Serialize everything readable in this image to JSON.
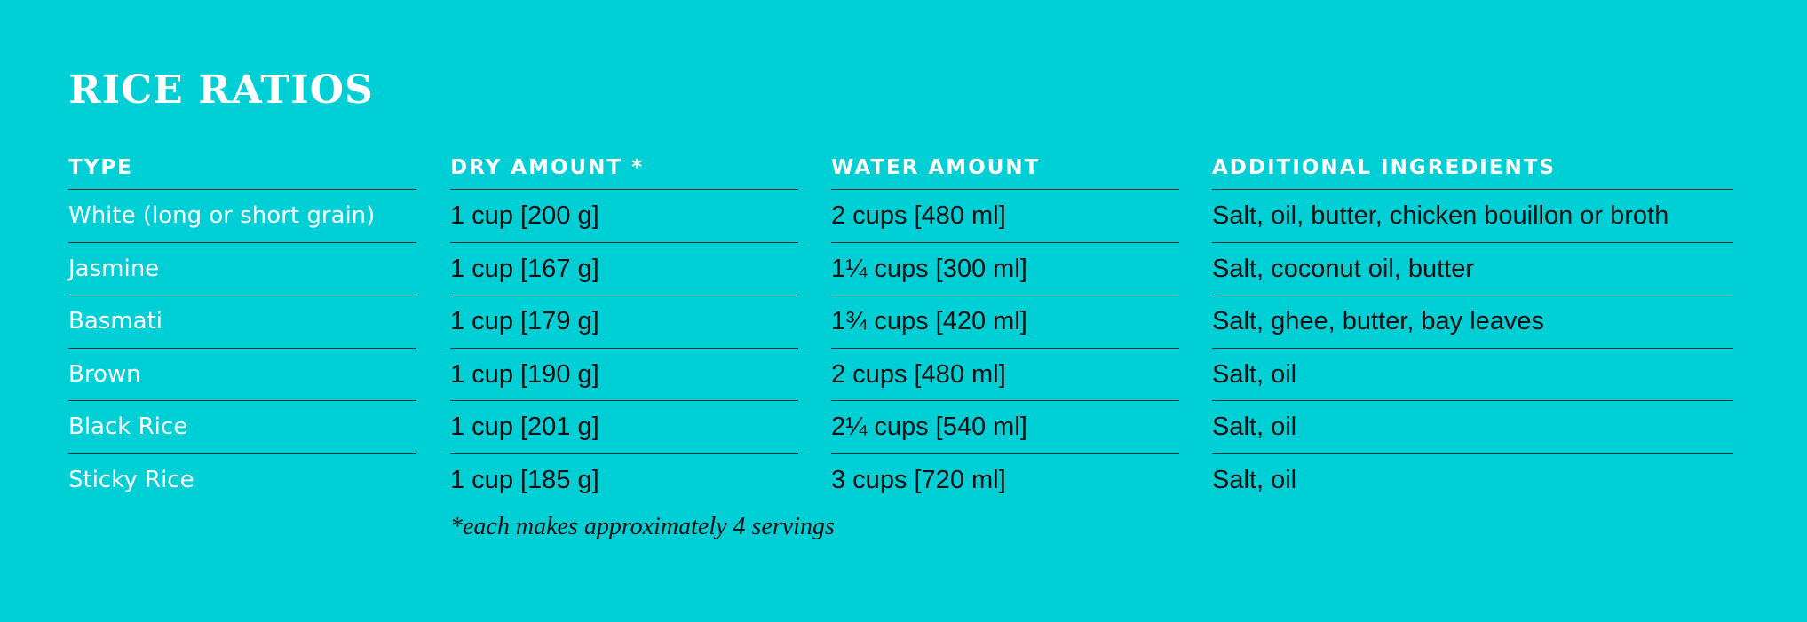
{
  "title": "RICE RATIOS",
  "table": {
    "headers": [
      "TYPE",
      "DRY AMOUNT *",
      "WATER AMOUNT",
      "ADDITIONAL INGREDIENTS"
    ],
    "rows": [
      [
        "White (long or short grain)",
        "1 cup [200 g]",
        "2 cups [480 ml]",
        "Salt, oil, butter, chicken bouillon or broth"
      ],
      [
        "Jasmine",
        "1 cup [167 g]",
        "1¼ cups [300 ml]",
        "Salt, coconut oil, butter"
      ],
      [
        "Basmati",
        "1 cup [179 g]",
        "1¾ cups [420 ml]",
        "Salt, ghee, butter, bay leaves"
      ],
      [
        "Brown",
        "1 cup [190 g]",
        "2 cups [480 ml]",
        "Salt, oil"
      ],
      [
        "Black Rice",
        "1 cup [201 g]",
        "2¼ cups [540 ml]",
        "Salt, oil"
      ],
      [
        "Sticky Rice",
        "1 cup [185 g]",
        "3 cups [720 ml]",
        "Salt, oil"
      ]
    ]
  },
  "footnote": "*each makes approximately 4 servings",
  "colors": {
    "background": "#00d0d6",
    "header_text": "#ffffff",
    "body_text": "#111111",
    "rule": "#222c2e"
  }
}
